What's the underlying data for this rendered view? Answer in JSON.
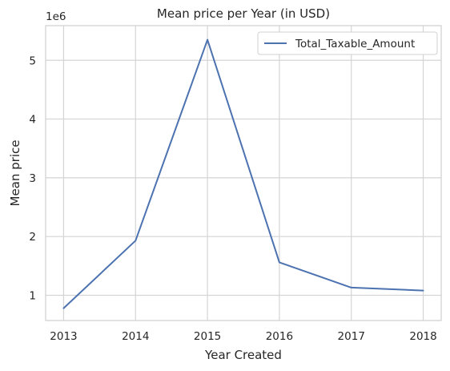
{
  "chart_data": {
    "type": "line",
    "title": "Mean price per Year (in USD)",
    "xlabel": "Year Created",
    "ylabel": "Mean price",
    "y_offset_text": "1e6",
    "x": [
      2013,
      2014,
      2015,
      2016,
      2017,
      2018
    ],
    "x_tick_labels": [
      "2013",
      "2014",
      "2015",
      "2016",
      "2017",
      "2018"
    ],
    "y_ticks": [
      1,
      2,
      3,
      4,
      5
    ],
    "y_tick_labels": [
      "1",
      "2",
      "3",
      "4",
      "5"
    ],
    "xlim": [
      2012.75,
      2018.25
    ],
    "ylim": [
      0.57,
      5.59
    ],
    "y_unit_multiplier": 1000000,
    "grid": true,
    "legend_position": "top-right",
    "series": [
      {
        "name": "Total_Taxable_Amount",
        "color": "#4c72b0",
        "values": [
          0.78,
          1.93,
          5.35,
          1.56,
          1.13,
          1.08
        ]
      }
    ]
  }
}
